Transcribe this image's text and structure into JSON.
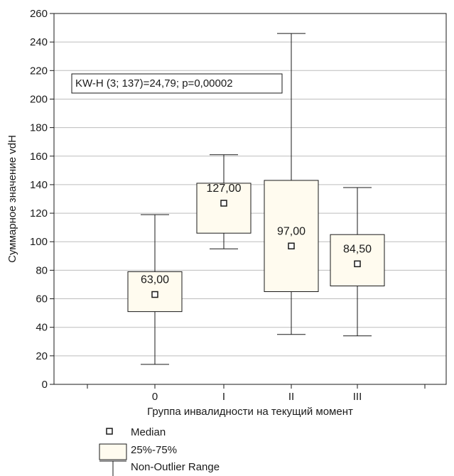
{
  "chart_data": {
    "type": "box",
    "xlabel": "Группа инвалидности на текущий момент",
    "ylabel": "Суммарное значение vdH",
    "ylim": [
      0,
      260
    ],
    "ytick_step": 20,
    "grid": "horizontal",
    "annotation": "KW-H (3; 137)=24,79; p=0,00002",
    "categories": [
      "0",
      "I",
      "II",
      "III"
    ],
    "boxes": [
      {
        "category": "0",
        "median": 63.0,
        "median_label": "63,00",
        "q1": 51,
        "q3": 79,
        "whisker_low": 14,
        "whisker_high": 119
      },
      {
        "category": "I",
        "median": 127.0,
        "median_label": "127,00",
        "q1": 106,
        "q3": 141,
        "whisker_low": 95,
        "whisker_high": 161
      },
      {
        "category": "II",
        "median": 97.0,
        "median_label": "97,00",
        "q1": 65,
        "q3": 143,
        "whisker_low": 35,
        "whisker_high": 246
      },
      {
        "category": "III",
        "median": 84.5,
        "median_label": "84,50",
        "q1": 69,
        "q3": 105,
        "whisker_low": 34,
        "whisker_high": 138
      }
    ],
    "legend": {
      "position": "bottom-left",
      "median": "Median",
      "box": "25%-75%",
      "whisker": "Non-Outlier Range"
    }
  },
  "colors": {
    "box_fill": "#fffbef",
    "stroke": "#1a1a1a",
    "grid": "#bdbdbd"
  }
}
